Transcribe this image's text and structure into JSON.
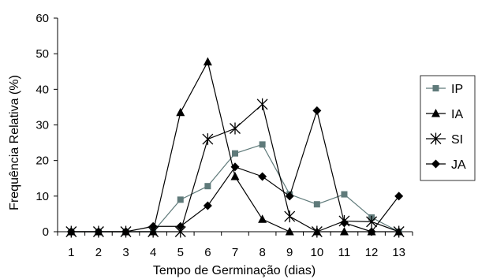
{
  "chart_data": {
    "type": "line",
    "title": "",
    "xlabel": "Tempo de Germinação (dias)",
    "ylabel": "Frequência Relativa (%)",
    "x": [
      1,
      2,
      3,
      4,
      5,
      6,
      7,
      8,
      9,
      10,
      11,
      12,
      13
    ],
    "ylim": [
      0,
      60
    ],
    "yticks": [
      0,
      10,
      20,
      30,
      40,
      50,
      60
    ],
    "grid": false,
    "legend_position": "right",
    "series": [
      {
        "name": "IP",
        "marker": "square",
        "color": "#5f7a7a",
        "values": [
          0,
          0,
          0,
          0,
          9,
          12.8,
          22,
          24.5,
          10.5,
          7.7,
          10.5,
          4,
          0
        ]
      },
      {
        "name": "IA",
        "marker": "triangle",
        "color": "#000000",
        "values": [
          0,
          0,
          0,
          0,
          33.5,
          47.7,
          15.5,
          3.5,
          0,
          0,
          0,
          0,
          0
        ]
      },
      {
        "name": "SI",
        "marker": "asterisk",
        "color": "#000000",
        "values": [
          0,
          0,
          0,
          0,
          0,
          26,
          29,
          35.8,
          4.3,
          0,
          3,
          2.8,
          0
        ]
      },
      {
        "name": "JA",
        "marker": "diamond",
        "color": "#000000",
        "values": [
          0,
          0,
          0,
          1.5,
          1.5,
          7.3,
          18.2,
          15.5,
          10,
          34,
          2.5,
          0,
          10
        ]
      }
    ]
  }
}
